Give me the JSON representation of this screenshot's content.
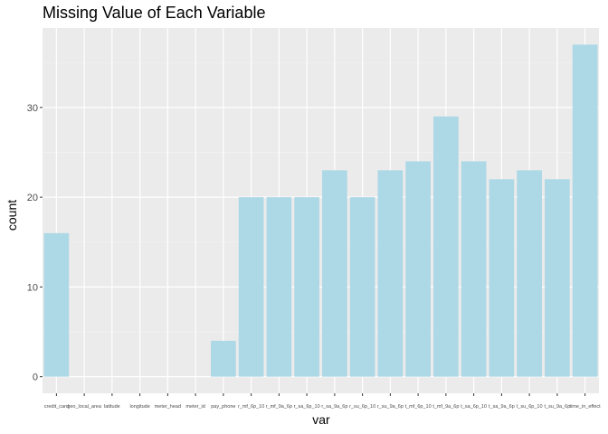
{
  "chart_data": {
    "type": "bar",
    "title": "Missing Value of Each Variable",
    "xlabel": "var",
    "ylabel": "count",
    "categories": [
      "credit_card",
      "geo_local_area",
      "latitude",
      "longitude",
      "meter_head",
      "meter_id",
      "pay_phone",
      "r_mf_9a_6p",
      "r_mf_6p_10",
      "r_sa_9a_6p",
      "r_sa_6p_10",
      "r_su_9a_6p",
      "r_su_6p_10",
      "t_mf_9a_6p",
      "t_mf_6p_10",
      "t_sa_9a_6p",
      "t_sa_6p_10",
      "t_su_9a_6p",
      "t_su_6p_10",
      "time_in_effect"
    ],
    "tick_labels": [
      "credit_card",
      "geo_local_area",
      "latitude",
      "longitude",
      "meter_head",
      "meter_id",
      "pay_phone",
      "r_mf_6p_10",
      "r_mf_9a_6p",
      "r_sa_6p_10",
      "r_sa_9a_6p",
      "r_su_6p_10",
      "r_su_9a_6p",
      "t_mf_6p_10",
      "t_mf_9a_6p",
      "t_sa_6p_10",
      "t_sa_9a_6p",
      "t_su_6p_10",
      "t_su_9a_6p",
      "time_in_effect"
    ],
    "values": [
      16,
      0,
      0,
      0,
      0,
      0,
      4,
      20,
      20,
      20,
      23,
      20,
      23,
      24,
      29,
      24,
      22,
      23,
      22,
      37
    ],
    "yticks": [
      0,
      10,
      20,
      30
    ],
    "ylim": [
      -1.85,
      38.85
    ],
    "grid": true,
    "legend": "none",
    "colors": {
      "bar": "#add8e6",
      "panel": "#ebebeb",
      "grid_major": "#ffffff",
      "grid_minor": "#f5f5f5",
      "tick_text": "#4d4d4d"
    }
  }
}
